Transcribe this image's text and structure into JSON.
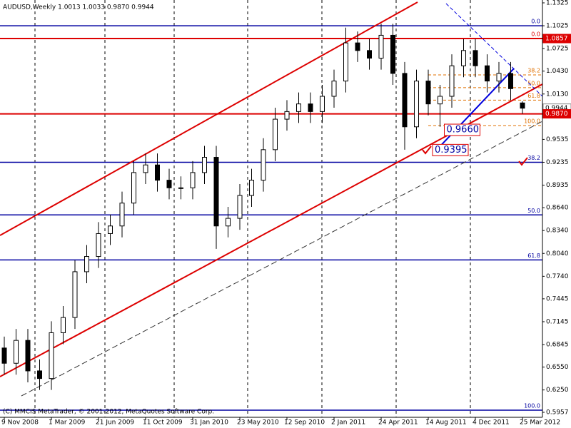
{
  "chart_data": {
    "type": "candlestick",
    "title": "AUDUSD,Weekly  1.0013 1.0033 0.9870 0.9944",
    "footer": "(C) MMCIS MetaTrader, © 2001-2012, MetaQuotes Software Corp.",
    "ylim": [
      0.5957,
      1.1325
    ],
    "yticks": [
      {
        "value": 1.1325,
        "label": "1.1325"
      },
      {
        "value": 1.1025,
        "label": "1.1025"
      },
      {
        "value": 1.0725,
        "label": "1.0725"
      },
      {
        "value": 1.043,
        "label": "1.0430"
      },
      {
        "value": 1.013,
        "label": "1.0130"
      },
      {
        "value": 0.9835,
        "label": "0.9835"
      },
      {
        "value": 0.9535,
        "label": "0.9535"
      },
      {
        "value": 0.9235,
        "label": "0.9235"
      },
      {
        "value": 0.8935,
        "label": "0.8935"
      },
      {
        "value": 0.864,
        "label": "0.8640"
      },
      {
        "value": 0.834,
        "label": "0.8340"
      },
      {
        "value": 0.804,
        "label": "0.8040"
      },
      {
        "value": 0.774,
        "label": "0.7740"
      },
      {
        "value": 0.7445,
        "label": "0.7445"
      },
      {
        "value": 0.7145,
        "label": "0.7145"
      },
      {
        "value": 0.6845,
        "label": "0.6845"
      },
      {
        "value": 0.655,
        "label": "0.6550"
      },
      {
        "value": 0.625,
        "label": "0.6250"
      },
      {
        "value": 0.5957,
        "label": "0.5957"
      }
    ],
    "categories": [
      "9 Nov 2008",
      null,
      null,
      null,
      "1 Mar 2009",
      null,
      null,
      null,
      "21 Jun 2009",
      null,
      null,
      null,
      "11 Oct 2009",
      null,
      null,
      null,
      "31 Jan 2010",
      null,
      null,
      null,
      "23 May 2010",
      null,
      null,
      null,
      "12 Sep 2010",
      null,
      null,
      null,
      "2 Jan 2011",
      null,
      null,
      null,
      "24 Apr 2011",
      null,
      null,
      null,
      "14 Aug 2011",
      null,
      null,
      null,
      "4 Dec 2011",
      null,
      null,
      null,
      "25 Mar 2012"
    ],
    "up_color": "#ffffff",
    "down_color": "#000000",
    "candles": [
      {
        "open": 0.68,
        "high": 0.695,
        "low": 0.645,
        "close": 0.66
      },
      {
        "open": 0.66,
        "high": 0.705,
        "low": 0.645,
        "close": 0.69
      },
      {
        "open": 0.69,
        "high": 0.705,
        "low": 0.635,
        "close": 0.65
      },
      {
        "open": 0.65,
        "high": 0.665,
        "low": 0.625,
        "close": 0.64
      },
      {
        "open": 0.64,
        "high": 0.715,
        "low": 0.625,
        "close": 0.7
      },
      {
        "open": 0.7,
        "high": 0.735,
        "low": 0.685,
        "close": 0.72
      },
      {
        "open": 0.72,
        "high": 0.795,
        "low": 0.705,
        "close": 0.78
      },
      {
        "open": 0.78,
        "high": 0.815,
        "low": 0.765,
        "close": 0.8
      },
      {
        "open": 0.8,
        "high": 0.845,
        "low": 0.785,
        "close": 0.83
      },
      {
        "open": 0.83,
        "high": 0.855,
        "low": 0.815,
        "close": 0.84
      },
      {
        "open": 0.84,
        "high": 0.885,
        "low": 0.825,
        "close": 0.87
      },
      {
        "open": 0.87,
        "high": 0.925,
        "low": 0.855,
        "close": 0.91
      },
      {
        "open": 0.91,
        "high": 0.935,
        "low": 0.895,
        "close": 0.92
      },
      {
        "open": 0.92,
        "high": 0.935,
        "low": 0.885,
        "close": 0.9
      },
      {
        "open": 0.9,
        "high": 0.915,
        "low": 0.875,
        "close": 0.89
      },
      {
        "open": 0.89,
        "high": 0.905,
        "low": 0.875,
        "close": 0.89
      },
      {
        "open": 0.89,
        "high": 0.925,
        "low": 0.875,
        "close": 0.91
      },
      {
        "open": 0.91,
        "high": 0.945,
        "low": 0.895,
        "close": 0.93
      },
      {
        "open": 0.93,
        "high": 0.945,
        "low": 0.81,
        "close": 0.84
      },
      {
        "open": 0.84,
        "high": 0.865,
        "low": 0.825,
        "close": 0.85
      },
      {
        "open": 0.85,
        "high": 0.895,
        "low": 0.835,
        "close": 0.88
      },
      {
        "open": 0.88,
        "high": 0.915,
        "low": 0.865,
        "close": 0.9
      },
      {
        "open": 0.9,
        "high": 0.955,
        "low": 0.885,
        "close": 0.94
      },
      {
        "open": 0.94,
        "high": 0.995,
        "low": 0.925,
        "close": 0.98
      },
      {
        "open": 0.98,
        "high": 1.005,
        "low": 0.965,
        "close": 0.99
      },
      {
        "open": 0.99,
        "high": 1.015,
        "low": 0.975,
        "close": 1.0
      },
      {
        "open": 1.0,
        "high": 1.015,
        "low": 0.975,
        "close": 0.99
      },
      {
        "open": 0.99,
        "high": 1.025,
        "low": 0.975,
        "close": 1.01
      },
      {
        "open": 1.01,
        "high": 1.045,
        "low": 0.995,
        "close": 1.03
      },
      {
        "open": 1.03,
        "high": 1.1,
        "low": 1.015,
        "close": 1.08
      },
      {
        "open": 1.08,
        "high": 1.095,
        "low": 1.055,
        "close": 1.07
      },
      {
        "open": 1.07,
        "high": 1.085,
        "low": 1.045,
        "close": 1.06
      },
      {
        "open": 1.06,
        "high": 1.105,
        "low": 1.045,
        "close": 1.09
      },
      {
        "open": 1.09,
        "high": 1.105,
        "low": 1.025,
        "close": 1.04
      },
      {
        "open": 1.04,
        "high": 1.055,
        "low": 0.94,
        "close": 0.97
      },
      {
        "open": 0.97,
        "high": 1.045,
        "low": 0.955,
        "close": 1.03
      },
      {
        "open": 1.03,
        "high": 1.045,
        "low": 0.985,
        "close": 1.0
      },
      {
        "open": 1.0,
        "high": 1.025,
        "low": 0.97,
        "close": 1.01
      },
      {
        "open": 1.01,
        "high": 1.065,
        "low": 0.995,
        "close": 1.05
      },
      {
        "open": 1.05,
        "high": 1.085,
        "low": 1.035,
        "close": 1.07
      },
      {
        "open": 1.07,
        "high": 1.085,
        "low": 1.035,
        "close": 1.05
      },
      {
        "open": 1.05,
        "high": 1.065,
        "low": 1.015,
        "close": 1.03
      },
      {
        "open": 1.03,
        "high": 1.055,
        "low": 1.015,
        "close": 1.04
      },
      {
        "open": 1.04,
        "high": 1.055,
        "low": 1.005,
        "close": 1.02
      },
      {
        "open": 1.0013,
        "high": 1.0033,
        "low": 0.987,
        "close": 0.9944
      }
    ],
    "levels": [
      {
        "value": 1.1025,
        "label": "0.0",
        "color": "#0000a0"
      },
      {
        "value": 0.9235,
        "label": "38.2",
        "color": "#0000a0"
      },
      {
        "value": 0.8545,
        "label": "50.0",
        "color": "#0000a0"
      },
      {
        "value": 0.7955,
        "label": "61.8",
        "color": "#0000a0"
      },
      {
        "value": 0.5985,
        "label": "100.0",
        "color": "#0000a0"
      },
      {
        "value": 1.0857,
        "label": "0.0",
        "color": "#dd0000"
      },
      {
        "value": 1.038,
        "label": "38.2",
        "color": "#e07000"
      },
      {
        "value": 1.0213,
        "label": "50.0",
        "color": "#e07000"
      },
      {
        "value": 1.005,
        "label": "61.8",
        "color": "#e07000"
      },
      {
        "value": 0.9717,
        "label": "100.0",
        "color": "#e07000"
      }
    ],
    "price_markers": [
      {
        "value": 1.0857,
        "label": "1.0857",
        "color": "#dd0000"
      },
      {
        "value": 0.9944,
        "label": "0.9944",
        "color": "#ffffff"
      },
      {
        "value": 0.987,
        "label": "0.9870",
        "color": "#dd0000"
      }
    ],
    "red_lines": [
      1.0857,
      0.987
    ],
    "annotations": [
      {
        "value": 0.966,
        "label": "0.9660",
        "index": 37
      },
      {
        "value": 0.9395,
        "label": "0.9395",
        "index": 36
      }
    ]
  }
}
